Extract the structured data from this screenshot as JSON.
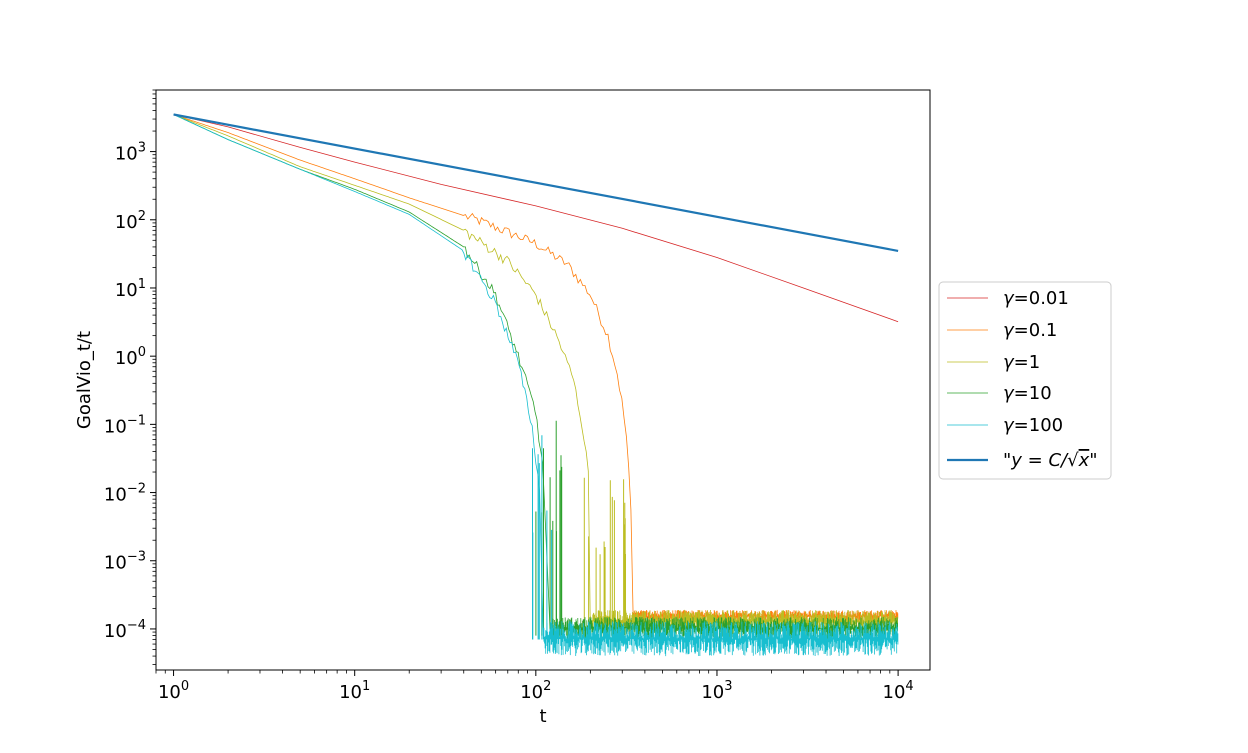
{
  "chart_data": {
    "type": "line",
    "xlabel": "t",
    "ylabel": "GoalVio_t/t",
    "xscale": "log",
    "yscale": "log",
    "xlim": [
      0.8,
      15000
    ],
    "ylim": [
      2.5e-05,
      8000
    ],
    "grid": false,
    "legend_position": "center-right outside",
    "x_ticks": [
      {
        "value": 1,
        "base": "10",
        "exp": "0"
      },
      {
        "value": 10,
        "base": "10",
        "exp": "1"
      },
      {
        "value": 100,
        "base": "10",
        "exp": "2"
      },
      {
        "value": 1000,
        "base": "10",
        "exp": "3"
      },
      {
        "value": 10000,
        "base": "10",
        "exp": "4"
      }
    ],
    "y_ticks": [
      {
        "value": 1000,
        "base": "10",
        "exp": "3"
      },
      {
        "value": 100,
        "base": "10",
        "exp": "2"
      },
      {
        "value": 10,
        "base": "10",
        "exp": "1"
      },
      {
        "value": 1,
        "base": "10",
        "exp": "0"
      },
      {
        "value": 0.1,
        "base": "10",
        "exp": "−1"
      },
      {
        "value": 0.01,
        "base": "10",
        "exp": "−2"
      },
      {
        "value": 0.001,
        "base": "10",
        "exp": "−3"
      },
      {
        "value": 0.0001,
        "base": "10",
        "exp": "−4"
      }
    ],
    "series": [
      {
        "name": "γ=0.01",
        "legend_symbol": "γ",
        "legend_value": "=0.01",
        "color": "#d62728",
        "width": 0.8,
        "points": [
          [
            1,
            3500
          ],
          [
            2,
            2300
          ],
          [
            5,
            1150
          ],
          [
            10,
            700
          ],
          [
            30,
            330
          ],
          [
            100,
            160
          ],
          [
            300,
            75
          ],
          [
            1000,
            28
          ],
          [
            3000,
            10
          ],
          [
            10000,
            3.2
          ]
        ]
      },
      {
        "name": "γ=0.1",
        "legend_symbol": "γ",
        "legend_value": "=0.1",
        "color": "#ff7f0e",
        "width": 0.8,
        "points": [
          [
            1,
            3500
          ],
          [
            2,
            1900
          ],
          [
            5,
            750
          ],
          [
            10,
            400
          ],
          [
            20,
            210
          ],
          [
            50,
            95
          ],
          [
            100,
            45
          ],
          [
            150,
            22
          ],
          [
            200,
            8
          ],
          [
            250,
            2
          ],
          [
            280,
            0.6
          ],
          [
            300,
            0.2
          ],
          [
            320,
            0.05
          ],
          [
            330,
            0.01
          ],
          [
            340,
            0.003
          ],
          [
            345,
            0.00013
          ],
          [
            1000,
            0.00015
          ],
          [
            10000,
            0.00016
          ]
        ],
        "noise": {
          "start": 345,
          "end": 10000,
          "low": 0.000125,
          "high": 0.00019
        }
      },
      {
        "name": "γ=1",
        "legend_symbol": "γ",
        "legend_value": "=1",
        "color": "#bcbd22",
        "width": 0.8,
        "points": [
          [
            1,
            3500
          ],
          [
            2,
            1700
          ],
          [
            5,
            600
          ],
          [
            10,
            320
          ],
          [
            20,
            170
          ],
          [
            40,
            70
          ],
          [
            70,
            25
          ],
          [
            100,
            8
          ],
          [
            130,
            2
          ],
          [
            160,
            0.5
          ],
          [
            180,
            0.1
          ],
          [
            195,
            0.02
          ],
          [
            200,
            9e-05
          ],
          [
            10000,
            0.00014
          ]
        ],
        "spikes": {
          "start": 185,
          "end": 340,
          "low": 0.00011,
          "high": 0.02,
          "count": 14
        },
        "noise": {
          "start": 200,
          "end": 10000,
          "low": 9e-05,
          "high": 0.00019
        }
      },
      {
        "name": "γ=10",
        "legend_symbol": "γ",
        "legend_value": "=10",
        "color": "#2ca02c",
        "width": 0.8,
        "points": [
          [
            1,
            3500
          ],
          [
            2,
            1500
          ],
          [
            5,
            550
          ],
          [
            10,
            280
          ],
          [
            20,
            130
          ],
          [
            40,
            40
          ],
          [
            60,
            8
          ],
          [
            80,
            1
          ],
          [
            100,
            0.15
          ],
          [
            110,
            0.02
          ],
          [
            120,
            8e-05
          ],
          [
            10000,
            0.00012
          ]
        ],
        "spikes": {
          "start": 100,
          "end": 140,
          "low": 8e-05,
          "high": 0.12,
          "count": 10
        },
        "noise": {
          "start": 120,
          "end": 10000,
          "low": 7e-05,
          "high": 0.00015
        }
      },
      {
        "name": "γ=100",
        "legend_symbol": "γ",
        "legend_value": "=100",
        "color": "#17becf",
        "width": 0.8,
        "points": [
          [
            1,
            3500
          ],
          [
            2,
            1500
          ],
          [
            5,
            550
          ],
          [
            10,
            260
          ],
          [
            20,
            120
          ],
          [
            40,
            35
          ],
          [
            60,
            6
          ],
          [
            80,
            0.8
          ],
          [
            95,
            0.1
          ],
          [
            105,
            0.01
          ],
          [
            110,
            8e-05
          ],
          [
            10000,
            8e-05
          ]
        ],
        "spikes": {
          "start": 95,
          "end": 125,
          "low": 7e-05,
          "high": 0.1,
          "count": 8
        },
        "noise": {
          "start": 110,
          "end": 10000,
          "low": 4e-05,
          "high": 0.00013
        }
      },
      {
        "name": "\"y = C/√x\"",
        "legend_open": "\"",
        "legend_math": "y = C/",
        "legend_sqrt": "√",
        "legend_x": "x",
        "legend_close": "\"",
        "color": "#1f77b4",
        "width": 2.2,
        "points": [
          [
            1,
            3500
          ],
          [
            10000,
            35
          ]
        ]
      }
    ]
  }
}
